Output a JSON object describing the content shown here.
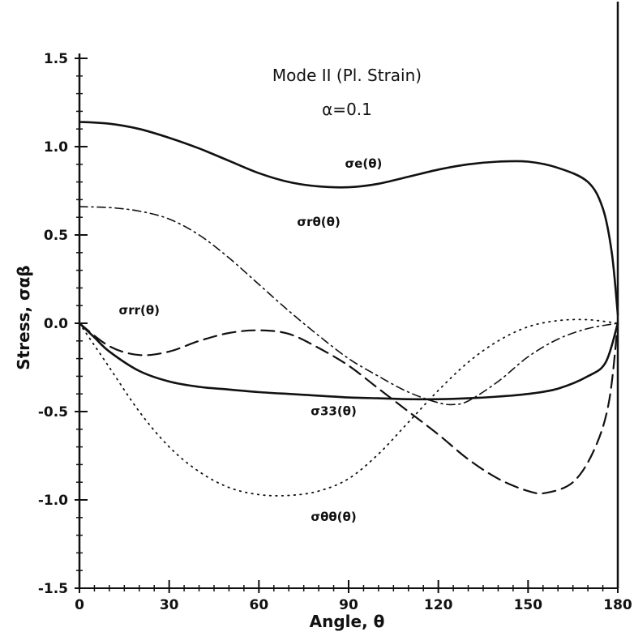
{
  "chart_data": {
    "type": "line",
    "title": "Mode II (Pl. Strain)",
    "subtitle": "α=0.1",
    "xlabel": "Angle, θ",
    "ylabel": "Stress, σαβ",
    "xlim": [
      0,
      180
    ],
    "ylim": [
      -1.5,
      1.5
    ],
    "x_ticks": [
      "0",
      "30",
      "60",
      "90",
      "120",
      "150",
      "180"
    ],
    "y_ticks": [
      "1.5",
      "1.0",
      "0.5",
      "0.0",
      "-0.5",
      "-1.0",
      "-1.5"
    ],
    "grid": false,
    "legend": "inline labels",
    "series": [
      {
        "name": "σe(θ)",
        "style": "solid",
        "points": [
          [
            0,
            1.14
          ],
          [
            10,
            1.13
          ],
          [
            20,
            1.1
          ],
          [
            30,
            1.05
          ],
          [
            40,
            0.99
          ],
          [
            50,
            0.92
          ],
          [
            60,
            0.85
          ],
          [
            70,
            0.8
          ],
          [
            80,
            0.775
          ],
          [
            90,
            0.77
          ],
          [
            100,
            0.79
          ],
          [
            110,
            0.83
          ],
          [
            120,
            0.87
          ],
          [
            130,
            0.9
          ],
          [
            140,
            0.915
          ],
          [
            150,
            0.915
          ],
          [
            160,
            0.88
          ],
          [
            170,
            0.8
          ],
          [
            175,
            0.65
          ],
          [
            178,
            0.4
          ],
          [
            180,
            0.05
          ]
        ]
      },
      {
        "name": "σrθ(θ)",
        "style": "dash-dot",
        "points": [
          [
            0,
            0.66
          ],
          [
            10,
            0.655
          ],
          [
            20,
            0.635
          ],
          [
            30,
            0.59
          ],
          [
            40,
            0.5
          ],
          [
            50,
            0.37
          ],
          [
            60,
            0.22
          ],
          [
            70,
            0.07
          ],
          [
            80,
            -0.07
          ],
          [
            90,
            -0.2
          ],
          [
            100,
            -0.3
          ],
          [
            110,
            -0.39
          ],
          [
            120,
            -0.45
          ],
          [
            125,
            -0.46
          ],
          [
            130,
            -0.44
          ],
          [
            140,
            -0.33
          ],
          [
            150,
            -0.19
          ],
          [
            160,
            -0.09
          ],
          [
            170,
            -0.03
          ],
          [
            180,
            0.0
          ]
        ]
      },
      {
        "name": "σrr(θ)",
        "style": "dashed",
        "points": [
          [
            0,
            0.0
          ],
          [
            10,
            -0.13
          ],
          [
            20,
            -0.18
          ],
          [
            30,
            -0.16
          ],
          [
            40,
            -0.1
          ],
          [
            50,
            -0.055
          ],
          [
            60,
            -0.04
          ],
          [
            70,
            -0.06
          ],
          [
            80,
            -0.14
          ],
          [
            90,
            -0.24
          ],
          [
            100,
            -0.37
          ],
          [
            110,
            -0.5
          ],
          [
            120,
            -0.63
          ],
          [
            130,
            -0.77
          ],
          [
            140,
            -0.88
          ],
          [
            150,
            -0.95
          ],
          [
            156,
            -0.96
          ],
          [
            165,
            -0.9
          ],
          [
            172,
            -0.72
          ],
          [
            177,
            -0.45
          ],
          [
            180,
            0.0
          ]
        ]
      },
      {
        "name": "σ33(θ)",
        "style": "solid",
        "points": [
          [
            0,
            0.0
          ],
          [
            5,
            -0.08
          ],
          [
            10,
            -0.16
          ],
          [
            20,
            -0.27
          ],
          [
            30,
            -0.33
          ],
          [
            40,
            -0.36
          ],
          [
            50,
            -0.375
          ],
          [
            60,
            -0.39
          ],
          [
            70,
            -0.4
          ],
          [
            80,
            -0.41
          ],
          [
            90,
            -0.42
          ],
          [
            100,
            -0.425
          ],
          [
            110,
            -0.43
          ],
          [
            120,
            -0.43
          ],
          [
            130,
            -0.425
          ],
          [
            140,
            -0.415
          ],
          [
            150,
            -0.4
          ],
          [
            160,
            -0.37
          ],
          [
            170,
            -0.3
          ],
          [
            176,
            -0.22
          ],
          [
            180,
            0.0
          ]
        ]
      },
      {
        "name": "σθθ(θ)",
        "style": "dotted",
        "points": [
          [
            0,
            0.0
          ],
          [
            10,
            -0.25
          ],
          [
            20,
            -0.5
          ],
          [
            30,
            -0.7
          ],
          [
            40,
            -0.84
          ],
          [
            50,
            -0.93
          ],
          [
            60,
            -0.97
          ],
          [
            70,
            -0.975
          ],
          [
            80,
            -0.95
          ],
          [
            90,
            -0.88
          ],
          [
            100,
            -0.74
          ],
          [
            110,
            -0.56
          ],
          [
            120,
            -0.38
          ],
          [
            130,
            -0.22
          ],
          [
            140,
            -0.1
          ],
          [
            150,
            -0.02
          ],
          [
            160,
            0.015
          ],
          [
            170,
            0.02
          ],
          [
            180,
            0.0
          ]
        ]
      }
    ],
    "annotations": [
      {
        "text": "σe(θ)",
        "x": 95,
        "y": 0.88
      },
      {
        "text": "σrθ(θ)",
        "x": 80,
        "y": 0.55
      },
      {
        "text": "σrr(θ)",
        "x": 20,
        "y": 0.05
      },
      {
        "text": "σ33(θ)",
        "x": 85,
        "y": -0.52
      },
      {
        "text": "σθθ(θ)",
        "x": 85,
        "y": -1.12
      }
    ]
  }
}
